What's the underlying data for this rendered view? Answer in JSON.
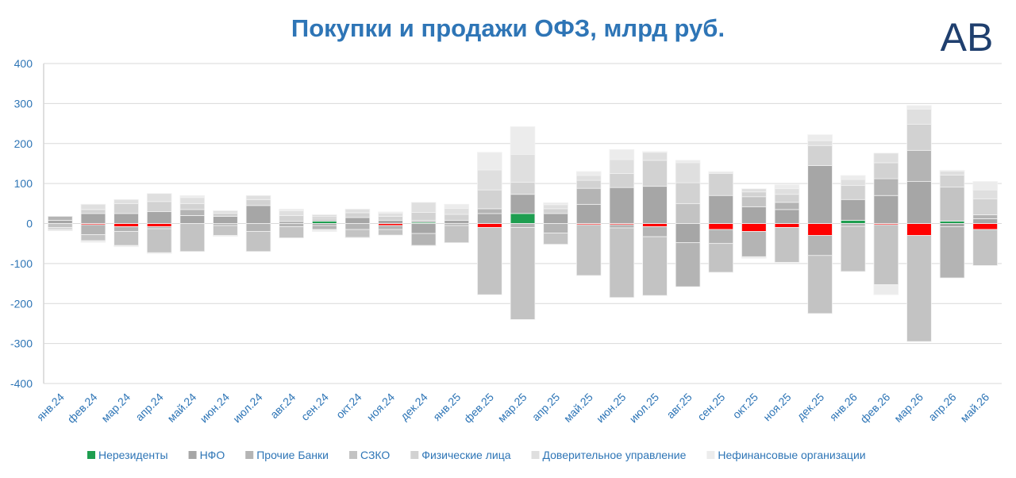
{
  "chart_data": {
    "type": "bar",
    "stacked": true,
    "title": "Покупки и продажи ОФЗ, млрд руб.",
    "logo": "AB",
    "categories": [
      "янв.24",
      "фев.24",
      "мар.24",
      "апр.24",
      "май.24",
      "июн.24",
      "июл.24",
      "авг.24",
      "сен.24",
      "окт.24",
      "ноя.24",
      "дек.24",
      "янв.25",
      "фев.25",
      "мар.25",
      "апр.25",
      "май.25",
      "июн.25",
      "июл.25",
      "авг.25",
      "сен.25",
      "окт.25",
      "ноя.25",
      "дек.25",
      "янв.26",
      "фев.26",
      "мар.26",
      "апр.26",
      "май.26"
    ],
    "series": [
      {
        "name": "Нерезиденты",
        "color": "#1e9e50",
        "negative_color": "#ff0000",
        "values": [
          0,
          -3,
          -8,
          -8,
          0,
          0,
          0,
          0,
          6,
          0,
          -5,
          3,
          0,
          -10,
          25,
          0,
          -3,
          -3,
          -8,
          0,
          -15,
          -20,
          -10,
          -30,
          8,
          -3,
          -30,
          6,
          -15
        ]
      },
      {
        "name": "НФО",
        "color": "#a6a6a6",
        "values": [
          8,
          25,
          25,
          30,
          20,
          18,
          45,
          5,
          -5,
          15,
          8,
          -25,
          8,
          25,
          48,
          25,
          48,
          90,
          93,
          -48,
          70,
          42,
          35,
          145,
          52,
          70,
          105,
          -8,
          12
        ]
      },
      {
        "name": "Прочие Банки",
        "color": "#b4b4b4",
        "values": [
          10,
          -25,
          -12,
          -5,
          15,
          -5,
          -20,
          -8,
          -10,
          -15,
          -10,
          -30,
          -5,
          12,
          -10,
          -24,
          40,
          -8,
          -25,
          -110,
          -35,
          -63,
          18,
          -50,
          -7,
          42,
          78,
          -128,
          10
        ]
      },
      {
        "name": "СЗКО",
        "color": "#c3c3c3",
        "values": [
          -10,
          -15,
          -35,
          -60,
          -70,
          -25,
          -50,
          -28,
          5,
          -20,
          -14,
          5,
          -43,
          -168,
          -230,
          -28,
          -127,
          -174,
          -147,
          50,
          -72,
          25,
          -87,
          -145,
          -113,
          -150,
          -265,
          85,
          -90
        ]
      },
      {
        "name": "Физические лица",
        "color": "#d2d2d2",
        "values": [
          -5,
          10,
          25,
          25,
          15,
          8,
          15,
          15,
          6,
          12,
          10,
          20,
          15,
          47,
          30,
          12,
          20,
          35,
          65,
          52,
          55,
          12,
          20,
          50,
          35,
          40,
          65,
          30,
          40
        ]
      },
      {
        "name": "Доверительное управление",
        "color": "#dfdfdf",
        "values": [
          -3,
          13,
          10,
          20,
          15,
          6,
          10,
          12,
          5,
          9,
          8,
          25,
          15,
          50,
          70,
          10,
          12,
          35,
          20,
          50,
          3,
          8,
          14,
          12,
          15,
          24,
          38,
          10,
          22
        ]
      },
      {
        "name": "Нефинансовые организации",
        "color": "#ececec",
        "values": [
          0,
          -4,
          -3,
          -2,
          5,
          -2,
          0,
          4,
          -5,
          -1,
          3,
          -1,
          10,
          44,
          69,
          5,
          10,
          25,
          2,
          6,
          2,
          -4,
          10,
          15,
          10,
          -25,
          9,
          2,
          21
        ]
      }
    ],
    "ylim": [
      -400,
      400
    ],
    "yticks": [
      -400,
      -300,
      -200,
      -100,
      0,
      100,
      200,
      300,
      400
    ],
    "grid": true
  }
}
